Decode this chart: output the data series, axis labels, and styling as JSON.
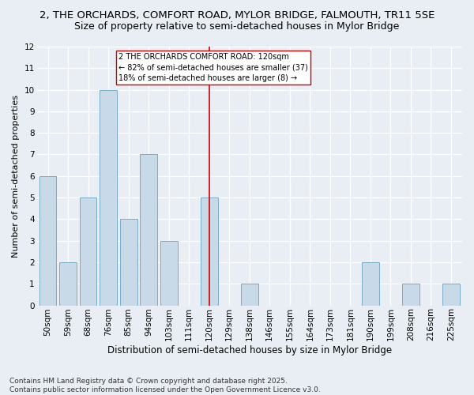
{
  "title_line1": "2, THE ORCHARDS, COMFORT ROAD, MYLOR BRIDGE, FALMOUTH, TR11 5SE",
  "title_line2": "Size of property relative to semi-detached houses in Mylor Bridge",
  "xlabel": "Distribution of semi-detached houses by size in Mylor Bridge",
  "ylabel": "Number of semi-detached properties",
  "categories": [
    "50sqm",
    "59sqm",
    "68sqm",
    "76sqm",
    "85sqm",
    "94sqm",
    "103sqm",
    "111sqm",
    "120sqm",
    "129sqm",
    "138sqm",
    "146sqm",
    "155sqm",
    "164sqm",
    "173sqm",
    "181sqm",
    "190sqm",
    "199sqm",
    "208sqm",
    "216sqm",
    "225sqm"
  ],
  "values": [
    6,
    2,
    5,
    10,
    4,
    7,
    3,
    0,
    5,
    0,
    1,
    0,
    0,
    0,
    0,
    0,
    2,
    0,
    1,
    0,
    1
  ],
  "bar_color": "#c8d9e8",
  "bar_edge_color": "#7aaac8",
  "highlight_index": 8,
  "red_line_color": "#cc0000",
  "annotation_text": "2 THE ORCHARDS COMFORT ROAD: 120sqm\n← 82% of semi-detached houses are smaller (37)\n18% of semi-detached houses are larger (8) →",
  "annotation_box_color": "#ffffff",
  "annotation_box_edge": "#cc0000",
  "ylim": [
    0,
    12
  ],
  "yticks": [
    0,
    1,
    2,
    3,
    4,
    5,
    6,
    7,
    8,
    9,
    10,
    11,
    12
  ],
  "footer": "Contains HM Land Registry data © Crown copyright and database right 2025.\nContains public sector information licensed under the Open Government Licence v3.0.",
  "bg_color": "#e8eef4",
  "plot_bg_color": "#e8eef4",
  "grid_color": "#ffffff",
  "title_fontsize": 9.5,
  "subtitle_fontsize": 9,
  "tick_fontsize": 7.5,
  "ylabel_fontsize": 8,
  "xlabel_fontsize": 8.5,
  "footer_fontsize": 6.5
}
